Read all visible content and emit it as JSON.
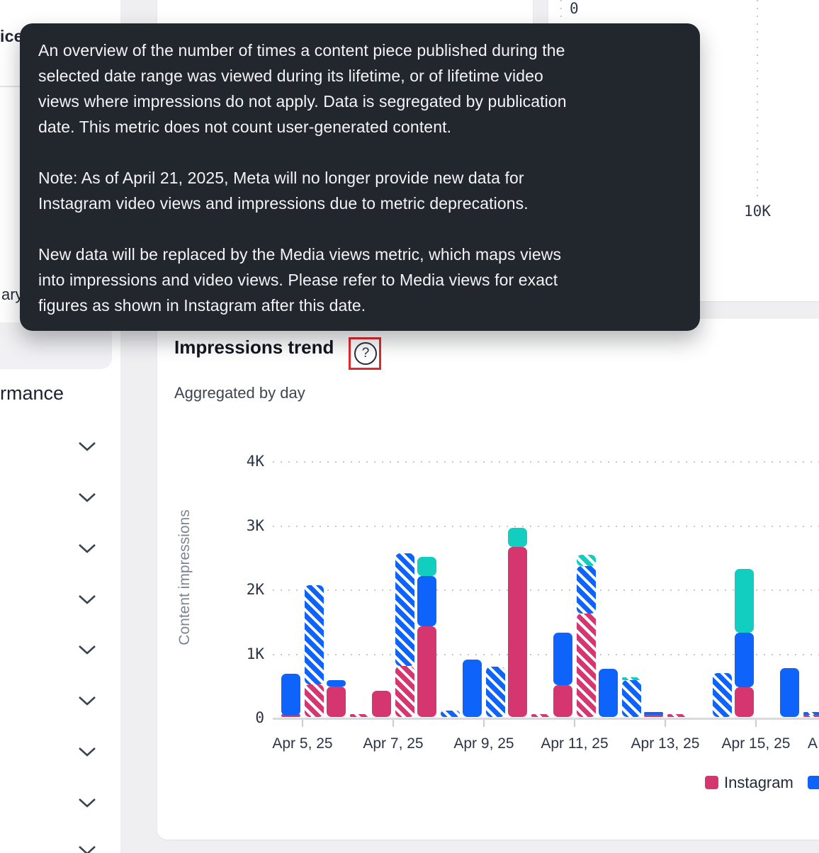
{
  "sidebar": {
    "title_fragment": "ice",
    "item_fragment": "ary",
    "section_fragment": "rmance",
    "chevron_y": [
      630,
      702,
      774,
      846,
      917,
      989,
      1061,
      1133,
      1200
    ]
  },
  "tooltip": {
    "paragraphs": [
      [
        "An overview of the number of times a content piece published during the",
        "selected date range was viewed during its lifetime, or of lifetime video",
        "views where impressions do not apply. Data is segregated by publication",
        "date. This metric does not count user-generated content."
      ],
      [
        "Note: As of April 21, 2025, Meta will no longer provide new data for",
        "Instagram video views and impressions due to metric deprecations."
      ],
      [
        "New data will be replaced by the Media views metric, which maps views",
        "into impressions and video views. Please refer to Media views for exact",
        "figures as shown in Instagram after this date."
      ]
    ],
    "bg": "#22272E"
  },
  "upper_chart": {
    "zero_label": "0",
    "tenk_label": "10K"
  },
  "impressions_card": {
    "title": "Impressions trend",
    "subtitle": "Aggregated by day",
    "help_glyph": "?",
    "highlight_color": "#DF2A2D"
  },
  "chart_data": {
    "type": "bar",
    "stacked": true,
    "grouped": true,
    "bar_groups": [
      "solid",
      "hatched"
    ],
    "title": "Impressions trend",
    "subtitle": "Aggregated by day",
    "ylabel": "Content impressions",
    "y_tick_labels": [
      "0",
      "1K",
      "2K",
      "3K",
      "4K"
    ],
    "ylim": [
      0,
      4000
    ],
    "grid": "dotted-horizontal",
    "x_tick_labels": [
      "Apr 5, 25",
      "Apr 7, 25",
      "Apr 9, 25",
      "Apr 11, 25",
      "Apr 13, 25",
      "Apr 15, 25"
    ],
    "next_tick_partial": "A",
    "legend_position": "bottom-right",
    "legend": [
      {
        "label": "Instagram",
        "color": "#D6366F"
      },
      {
        "label": "",
        "color": "#0D63FA"
      }
    ],
    "series_colors": {
      "instagram": "#D6366F",
      "blue": "#0D63FA",
      "teal": "#12CEC1"
    },
    "days": [
      {
        "date": "Apr 5, 25",
        "solid": {
          "instagram": 20,
          "blue": 650
        },
        "hatched": {
          "instagram": 510,
          "blue": 1550
        }
      },
      {
        "date": "Apr 6, 25",
        "solid": {
          "instagram": 480,
          "blue": 95
        },
        "hatched": {
          "instagram": 25
        }
      },
      {
        "date": "Apr 7, 25",
        "solid": {
          "instagram": 410
        },
        "hatched": {
          "instagram": 800,
          "blue": 1750
        }
      },
      {
        "date": "Apr 8, 25",
        "solid": {
          "instagram": 1410,
          "blue": 790,
          "teal": 300
        },
        "hatched": {
          "blue": 100
        }
      },
      {
        "date": "Apr 9, 25",
        "solid": {
          "blue": 890
        },
        "hatched": {
          "blue": 790
        }
      },
      {
        "date": "Apr 10, 25",
        "solid": {
          "instagram": 2650,
          "teal": 300
        },
        "hatched": {
          "instagram": 40
        }
      },
      {
        "date": "Apr 11, 25",
        "solid": {
          "instagram": 500,
          "blue": 810
        },
        "hatched": {
          "instagram": 1610,
          "blue": 740,
          "teal": 180
        }
      },
      {
        "date": "Apr 12, 25",
        "solid": {
          "blue": 750
        },
        "hatched": {
          "blue": 580,
          "teal": 40
        }
      },
      {
        "date": "Apr 13, 25",
        "solid": {
          "instagram": 30,
          "blue": 20
        },
        "hatched": {
          "instagram": 30
        }
      },
      {
        "date": "Apr 14, 25",
        "solid": {},
        "hatched": {
          "blue": 680
        }
      },
      {
        "date": "Apr 15, 25",
        "solid": {
          "instagram": 460,
          "blue": 850,
          "teal": 1000
        },
        "hatched": {}
      },
      {
        "date": "Apr 16, 25",
        "solid": {
          "blue": 760
        },
        "hatched": {
          "instagram": 30,
          "blue": 25
        }
      }
    ]
  }
}
